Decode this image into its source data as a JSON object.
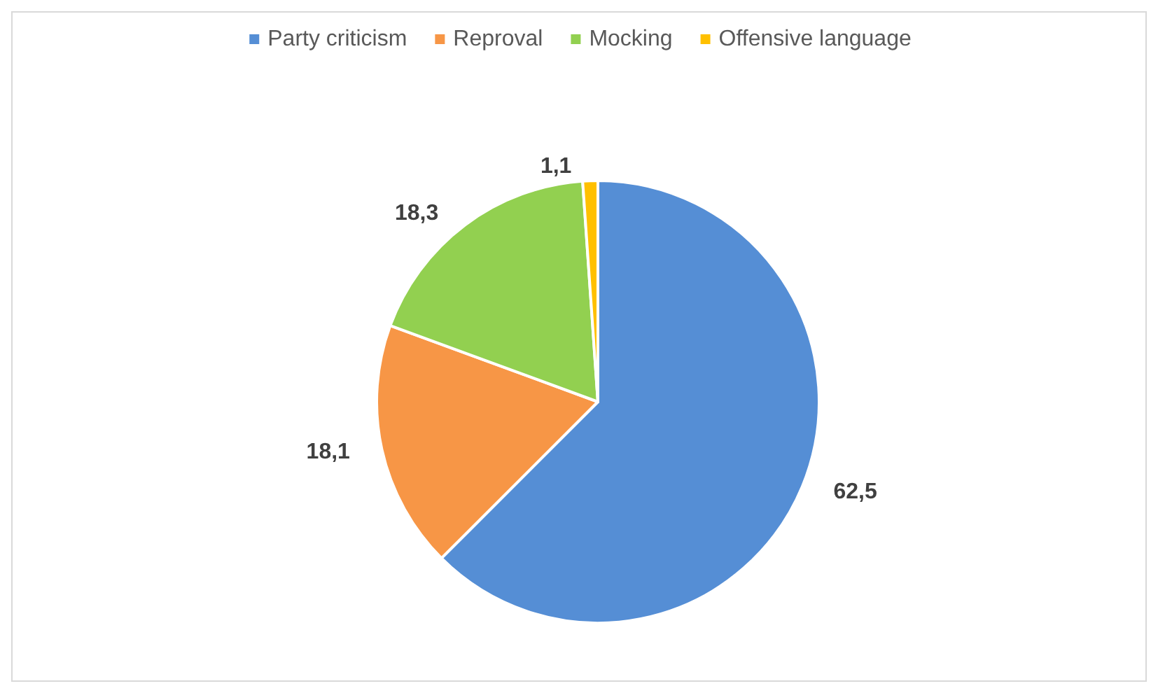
{
  "chart_data": {
    "type": "pie",
    "categories": [
      "Party criticism",
      "Reproval",
      "Mocking",
      "Offensive language"
    ],
    "values": [
      62.5,
      18.1,
      18.3,
      1.1
    ],
    "colors": [
      "#558ed5",
      "#f79646",
      "#92d050",
      "#ffc000"
    ],
    "value_labels": [
      "62,5",
      "18,1",
      "18,3",
      "1,1"
    ],
    "legend": "top"
  }
}
